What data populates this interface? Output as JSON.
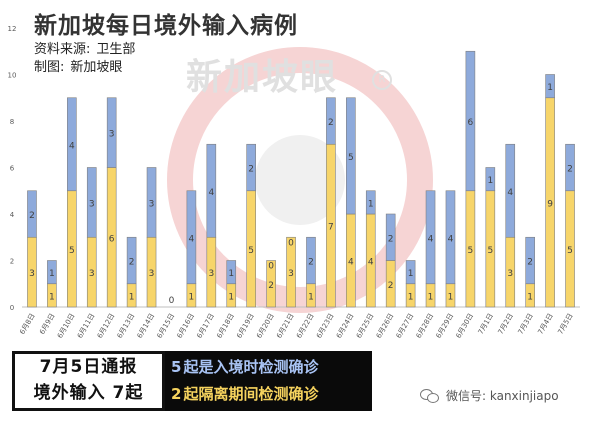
{
  "header": {
    "title": "新加坡每日境外输入病例",
    "source_label": "资料来源:",
    "source_value": "卫生部",
    "maker_label": "制图:",
    "maker_value": "新加坡眼"
  },
  "watermark": {
    "text": "新加坡眼",
    "mark": "R"
  },
  "chart_data": {
    "type": "bar",
    "stacked": true,
    "categories": [
      "6月8日",
      "6月9日",
      "6月10日",
      "6月11日",
      "6月12日",
      "6月13日",
      "6月14日",
      "6月15日",
      "6月16日",
      "6月17日",
      "6月18日",
      "6月19日",
      "6月20日",
      "6月21日",
      "6月22日",
      "6月23日",
      "6月24日",
      "6月25日",
      "6月26日",
      "6月27日",
      "6月28日",
      "6月29日",
      "6月30日",
      "7月1日",
      "7月2日",
      "7月3日",
      "7月4日",
      "7月5日"
    ],
    "series": [
      {
        "values": [
          3,
          1,
          5,
          3,
          6,
          1,
          3,
          0,
          1,
          3,
          1,
          5,
          0,
          0,
          1,
          7,
          4,
          4,
          2,
          1,
          1,
          1,
          5,
          5,
          3,
          1,
          9,
          5
        ],
        "color": "#f7d56a"
      },
      {
        "values": [
          2,
          1,
          4,
          3,
          3,
          2,
          3,
          0,
          4,
          4,
          1,
          2,
          0,
          0,
          2,
          2,
          5,
          1,
          2,
          1,
          4,
          4,
          6,
          1,
          4,
          2,
          1,
          2
        ],
        "color": "#8eaadb"
      }
    ],
    "bar_labels": [
      {
        "bottom": "3",
        "top": "2"
      },
      {
        "bottom": "1",
        "top": "1"
      },
      {
        "bottom": "5",
        "top": "4"
      },
      {
        "bottom": "3",
        "top": "3"
      },
      {
        "bottom": "6",
        "top": "3"
      },
      {
        "bottom": "1",
        "top": "2"
      },
      {
        "bottom": "3",
        "top": "3"
      },
      {
        "bottom": "0",
        "top": ""
      },
      {
        "bottom": "1",
        "top": "4"
      },
      {
        "bottom": "3",
        "top": "4"
      },
      {
        "bottom": "1",
        "top": "1"
      },
      {
        "bottom": "5",
        "top": "2"
      },
      {
        "bottom": "2",
        "top": "0"
      },
      {
        "bottom": "3",
        "top": "0"
      },
      {
        "bottom": "1",
        "top": "2"
      },
      {
        "bottom": "7",
        "top": "2"
      },
      {
        "bottom": "4",
        "top": "5"
      },
      {
        "bottom": "4",
        "top": "1"
      },
      {
        "bottom": "2",
        "top": "2"
      },
      {
        "bottom": "1",
        "top": "1"
      },
      {
        "bottom": "1",
        "top": "4"
      },
      {
        "bottom": "1",
        "top": "4"
      },
      {
        "bottom": "5",
        "top": "6"
      },
      {
        "bottom": "5",
        "top": "1"
      },
      {
        "bottom": "3",
        "top": "4"
      },
      {
        "bottom": "1",
        "top": "2"
      },
      {
        "bottom": "9",
        "top": "1"
      },
      {
        "bottom": "5",
        "top": "2"
      }
    ],
    "overrides": [
      {
        "index": 12,
        "bottom_value": 2,
        "top_value": 0
      },
      {
        "index": 13,
        "bottom_value": 3,
        "top_value": 0
      }
    ],
    "ylim": [
      0,
      12
    ],
    "yticks": [
      0,
      2,
      4,
      6,
      8,
      10,
      12
    ],
    "grid": false,
    "legend": "none"
  },
  "summary": {
    "left_line1": "7月5日通报",
    "left_line2": "境外输入 7起",
    "right_line1_num": "5",
    "right_line1_text": "起是入境时检测确诊",
    "right_line2_num": "2",
    "right_line2_text": "起隔离期间检测确诊"
  },
  "wechat": {
    "label": "微信号: kanxinjiapo"
  }
}
